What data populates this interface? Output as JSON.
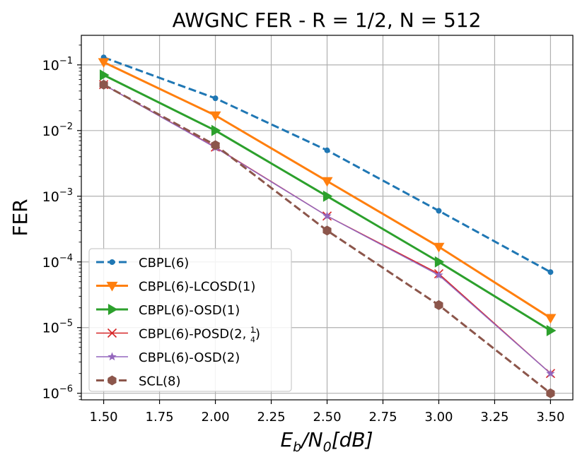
{
  "chart_data": {
    "type": "line",
    "title": "AWGNC FER - R = 1/2, N = 512",
    "xlabel": {
      "main": "E",
      "sub1": "b",
      "mid": "/N",
      "sub2": "0",
      "tail": "[dB]"
    },
    "ylabel": "FER",
    "x": [
      1.5,
      2.0,
      2.5,
      3.0,
      3.5
    ],
    "xlim": [
      1.4,
      3.6
    ],
    "ylim_log10": [
      -6.1,
      -0.55
    ],
    "xticks": [
      "1.50",
      "1.75",
      "2.00",
      "2.25",
      "2.50",
      "2.75",
      "3.00",
      "3.25",
      "3.50"
    ],
    "xtick_values": [
      1.5,
      1.75,
      2.0,
      2.25,
      2.5,
      2.75,
      3.0,
      3.25,
      3.5
    ],
    "yticks": [
      {
        "base": "10",
        "exp": "−1",
        "value": -1
      },
      {
        "base": "10",
        "exp": "−2",
        "value": -2
      },
      {
        "base": "10",
        "exp": "−3",
        "value": -3
      },
      {
        "base": "10",
        "exp": "−4",
        "value": -4
      },
      {
        "base": "10",
        "exp": "−5",
        "value": -5
      },
      {
        "base": "10",
        "exp": "−6",
        "value": -6
      }
    ],
    "grid": true,
    "legend_position": "bottom-left",
    "series": [
      {
        "name": "CBPL(6)",
        "color": "#1f77b4",
        "dash": "dashed",
        "marker": "circle",
        "values": [
          0.13,
          0.031,
          0.005,
          0.0006,
          7e-05
        ]
      },
      {
        "name": "CBPL(6)-LCOSD(1)",
        "color": "#ff7f0e",
        "dash": "solid",
        "marker": "triangle-down",
        "values": [
          0.11,
          0.017,
          0.0017,
          0.00017,
          1.4e-05
        ]
      },
      {
        "name": "CBPL(6)-OSD(1)",
        "color": "#2ca02c",
        "dash": "solid",
        "marker": "triangle-right",
        "values": [
          0.07,
          0.01,
          0.001,
          0.0001,
          9e-06
        ]
      },
      {
        "name": "CBPL(6)-POSD(2, ",
        "name_frac_num": "1",
        "name_frac_den": "4",
        "name_tail": ")",
        "color": "#d62728",
        "dash": "thin",
        "marker": "x",
        "values": [
          0.05,
          0.0056,
          0.0005,
          6.6e-05,
          2e-06
        ]
      },
      {
        "name": "CBPL(6)-OSD(2)",
        "color": "#9467bd",
        "dash": "thin",
        "marker": "star",
        "values": [
          0.05,
          0.0055,
          0.0005,
          6.3e-05,
          2e-06
        ]
      },
      {
        "name": "SCL(8)",
        "color": "#8c564b",
        "dash": "dashed",
        "marker": "hexagon",
        "values": [
          0.05,
          0.006,
          0.0003,
          2.2e-05,
          1e-06
        ]
      }
    ]
  }
}
